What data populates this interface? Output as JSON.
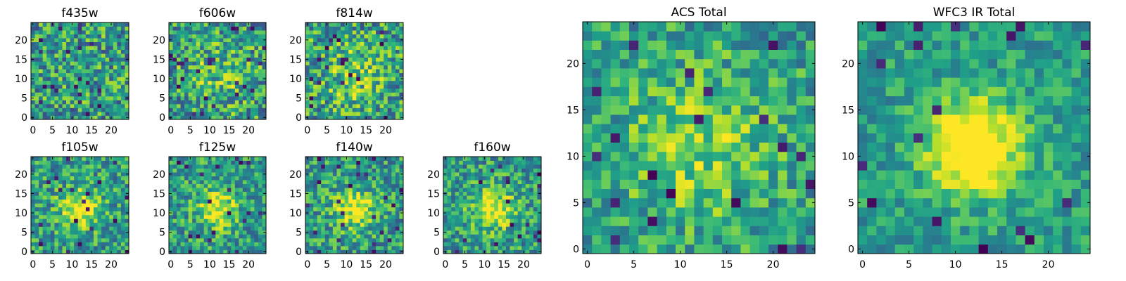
{
  "figure": {
    "description": "Grid of pixel cutout heatmaps per filter with ACS and WFC3 IR totals"
  },
  "chart_data": [
    {
      "type": "heatmap",
      "title": "f435w",
      "size": 25,
      "xticks": [
        0,
        5,
        10,
        15,
        20
      ],
      "yticks": [
        0,
        5,
        10,
        15,
        20
      ],
      "pattern": "noise",
      "center_strength": 0.0,
      "noise_amp": 0.55,
      "seed": 11
    },
    {
      "type": "heatmap",
      "title": "f606w",
      "size": 25,
      "xticks": [
        0,
        5,
        10,
        15,
        20
      ],
      "yticks": [
        0,
        5,
        10,
        15,
        20
      ],
      "pattern": "noise",
      "center_strength": 0.15,
      "noise_amp": 0.55,
      "seed": 23
    },
    {
      "type": "heatmap",
      "title": "f814w",
      "size": 25,
      "xticks": [
        0,
        5,
        10,
        15,
        20
      ],
      "yticks": [
        0,
        5,
        10,
        15,
        20
      ],
      "pattern": "noise",
      "center_strength": 0.2,
      "noise_amp": 0.55,
      "seed": 37
    },
    {
      "type": "heatmap",
      "title": "f105w",
      "size": 25,
      "xticks": [
        0,
        5,
        10,
        15,
        20
      ],
      "yticks": [
        0,
        5,
        10,
        15,
        20
      ],
      "pattern": "source",
      "center_strength": 0.45,
      "noise_amp": 0.45,
      "seed": 41
    },
    {
      "type": "heatmap",
      "title": "f125w",
      "size": 25,
      "xticks": [
        0,
        5,
        10,
        15,
        20
      ],
      "yticks": [
        0,
        5,
        10,
        15,
        20
      ],
      "pattern": "source",
      "center_strength": 0.45,
      "noise_amp": 0.45,
      "seed": 53
    },
    {
      "type": "heatmap",
      "title": "f140w",
      "size": 25,
      "xticks": [
        0,
        5,
        10,
        15,
        20
      ],
      "yticks": [
        0,
        5,
        10,
        15,
        20
      ],
      "pattern": "source",
      "center_strength": 0.45,
      "noise_amp": 0.45,
      "seed": 67
    },
    {
      "type": "heatmap",
      "title": "f160w",
      "size": 25,
      "xticks": [
        0,
        5,
        10,
        15,
        20
      ],
      "yticks": [
        0,
        5,
        10,
        15,
        20
      ],
      "pattern": "source",
      "center_strength": 0.5,
      "noise_amp": 0.45,
      "seed": 79
    },
    {
      "type": "heatmap",
      "title": "ACS Total",
      "size": 25,
      "xticks": [
        0,
        5,
        10,
        15,
        20
      ],
      "yticks": [
        0,
        5,
        10,
        15,
        20
      ],
      "pattern": "noise",
      "center_strength": 0.25,
      "noise_amp": 0.4,
      "seed": 83
    },
    {
      "type": "heatmap",
      "title": "WFC3 IR Total",
      "size": 25,
      "xticks": [
        0,
        5,
        10,
        15,
        20
      ],
      "yticks": [
        0,
        5,
        10,
        15,
        20
      ],
      "pattern": "source",
      "center_strength": 0.7,
      "noise_amp": 0.3,
      "seed": 97
    }
  ]
}
